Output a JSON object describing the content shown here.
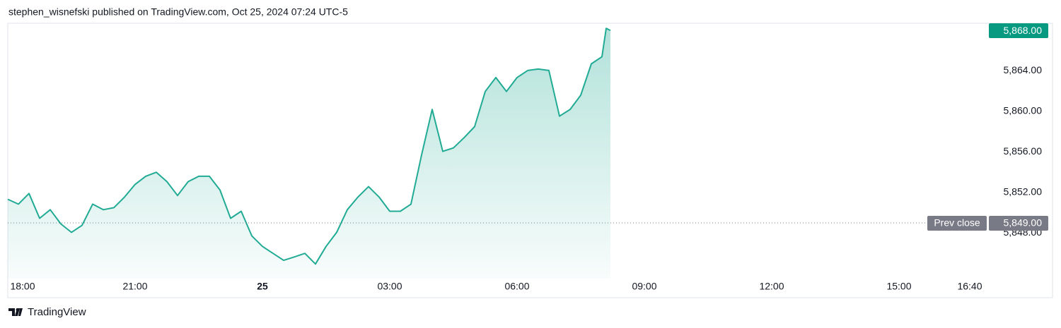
{
  "chart_data": {
    "type": "area",
    "title": "stephen_wisnefski published on TradingView.com, Oct 25, 2024 07:24 UTC-5",
    "brand": "TradingView",
    "color": "#22ab94",
    "x": [
      "2024-10-24T18:00",
      "2024-10-24T18:15",
      "2024-10-24T18:30",
      "2024-10-24T18:45",
      "2024-10-24T19:00",
      "2024-10-24T19:15",
      "2024-10-24T19:30",
      "2024-10-24T19:45",
      "2024-10-24T20:00",
      "2024-10-24T20:15",
      "2024-10-24T20:30",
      "2024-10-24T20:45",
      "2024-10-24T21:00",
      "2024-10-24T21:15",
      "2024-10-24T21:30",
      "2024-10-24T21:45",
      "2024-10-24T22:00",
      "2024-10-24T22:15",
      "2024-10-24T22:30",
      "2024-10-24T22:45",
      "2024-10-24T23:00",
      "2024-10-24T23:15",
      "2024-10-24T23:30",
      "2024-10-24T23:45",
      "2024-10-25T00:00",
      "2024-10-25T00:15",
      "2024-10-25T00:30",
      "2024-10-25T00:45",
      "2024-10-25T01:00",
      "2024-10-25T01:15",
      "2024-10-25T01:30",
      "2024-10-25T01:45",
      "2024-10-25T02:00",
      "2024-10-25T02:15",
      "2024-10-25T02:30",
      "2024-10-25T02:45",
      "2024-10-25T03:00",
      "2024-10-25T03:15",
      "2024-10-25T03:30",
      "2024-10-25T03:45",
      "2024-10-25T04:00",
      "2024-10-25T04:15",
      "2024-10-25T04:30",
      "2024-10-25T04:45",
      "2024-10-25T05:00",
      "2024-10-25T05:15",
      "2024-10-25T05:30",
      "2024-10-25T05:45",
      "2024-10-25T06:00",
      "2024-10-25T06:15",
      "2024-10-25T06:30",
      "2024-10-25T06:45",
      "2024-10-25T07:00",
      "2024-10-25T07:15",
      "2024-10-25T07:30",
      "2024-10-25T07:45",
      "2024-10-25T08:00",
      "2024-10-25T08:06",
      "2024-10-25T08:12"
    ],
    "values": [
      5851.33,
      5850.85,
      5851.9,
      5849.45,
      5850.3,
      5848.9,
      5848.07,
      5848.76,
      5850.85,
      5850.3,
      5850.5,
      5851.55,
      5852.8,
      5853.6,
      5854.0,
      5853.07,
      5851.7,
      5853.07,
      5853.6,
      5853.6,
      5852.24,
      5849.45,
      5850.15,
      5847.72,
      5846.68,
      5845.99,
      5845.3,
      5845.64,
      5845.99,
      5844.94,
      5846.68,
      5848.07,
      5850.3,
      5851.55,
      5852.58,
      5851.55,
      5850.15,
      5850.15,
      5850.85,
      5855.7,
      5860.2,
      5856.06,
      5856.4,
      5857.4,
      5858.5,
      5861.97,
      5863.35,
      5861.97,
      5863.35,
      5864.04,
      5864.18,
      5864.04,
      5859.53,
      5860.2,
      5861.6,
      5864.7,
      5865.4,
      5868.2,
      5868.0
    ],
    "last_label": "5,868.00",
    "prev_close": {
      "name": "Prev close",
      "value": 5849,
      "label": "5,849.00"
    },
    "xlim": [
      "2024-10-24T18:00",
      "2024-10-25T17:09"
    ],
    "xticks": [
      {
        "value": "2024-10-24T18:00",
        "label": "18:00"
      },
      {
        "value": "2024-10-24T21:00",
        "label": "21:00"
      },
      {
        "value": "2024-10-25T00:00",
        "label": "25"
      },
      {
        "value": "2024-10-25T03:00",
        "label": "03:00"
      },
      {
        "value": "2024-10-25T06:00",
        "label": "06:00"
      },
      {
        "value": "2024-10-25T09:00",
        "label": "09:00"
      },
      {
        "value": "2024-10-25T12:00",
        "label": "12:00"
      },
      {
        "value": "2024-10-25T15:00",
        "label": "15:00"
      },
      {
        "value": "2024-10-25T16:40",
        "label": "16:40"
      }
    ],
    "ylim": [
      5843.5,
      5868.7
    ],
    "yticks": [
      {
        "value": 5848,
        "label": "5,848.00"
      },
      {
        "value": 5852,
        "label": "5,852.00"
      },
      {
        "value": 5856,
        "label": "5,856.00"
      },
      {
        "value": 5860,
        "label": "5,860.00"
      },
      {
        "value": 5864,
        "label": "5,864.00"
      }
    ]
  }
}
